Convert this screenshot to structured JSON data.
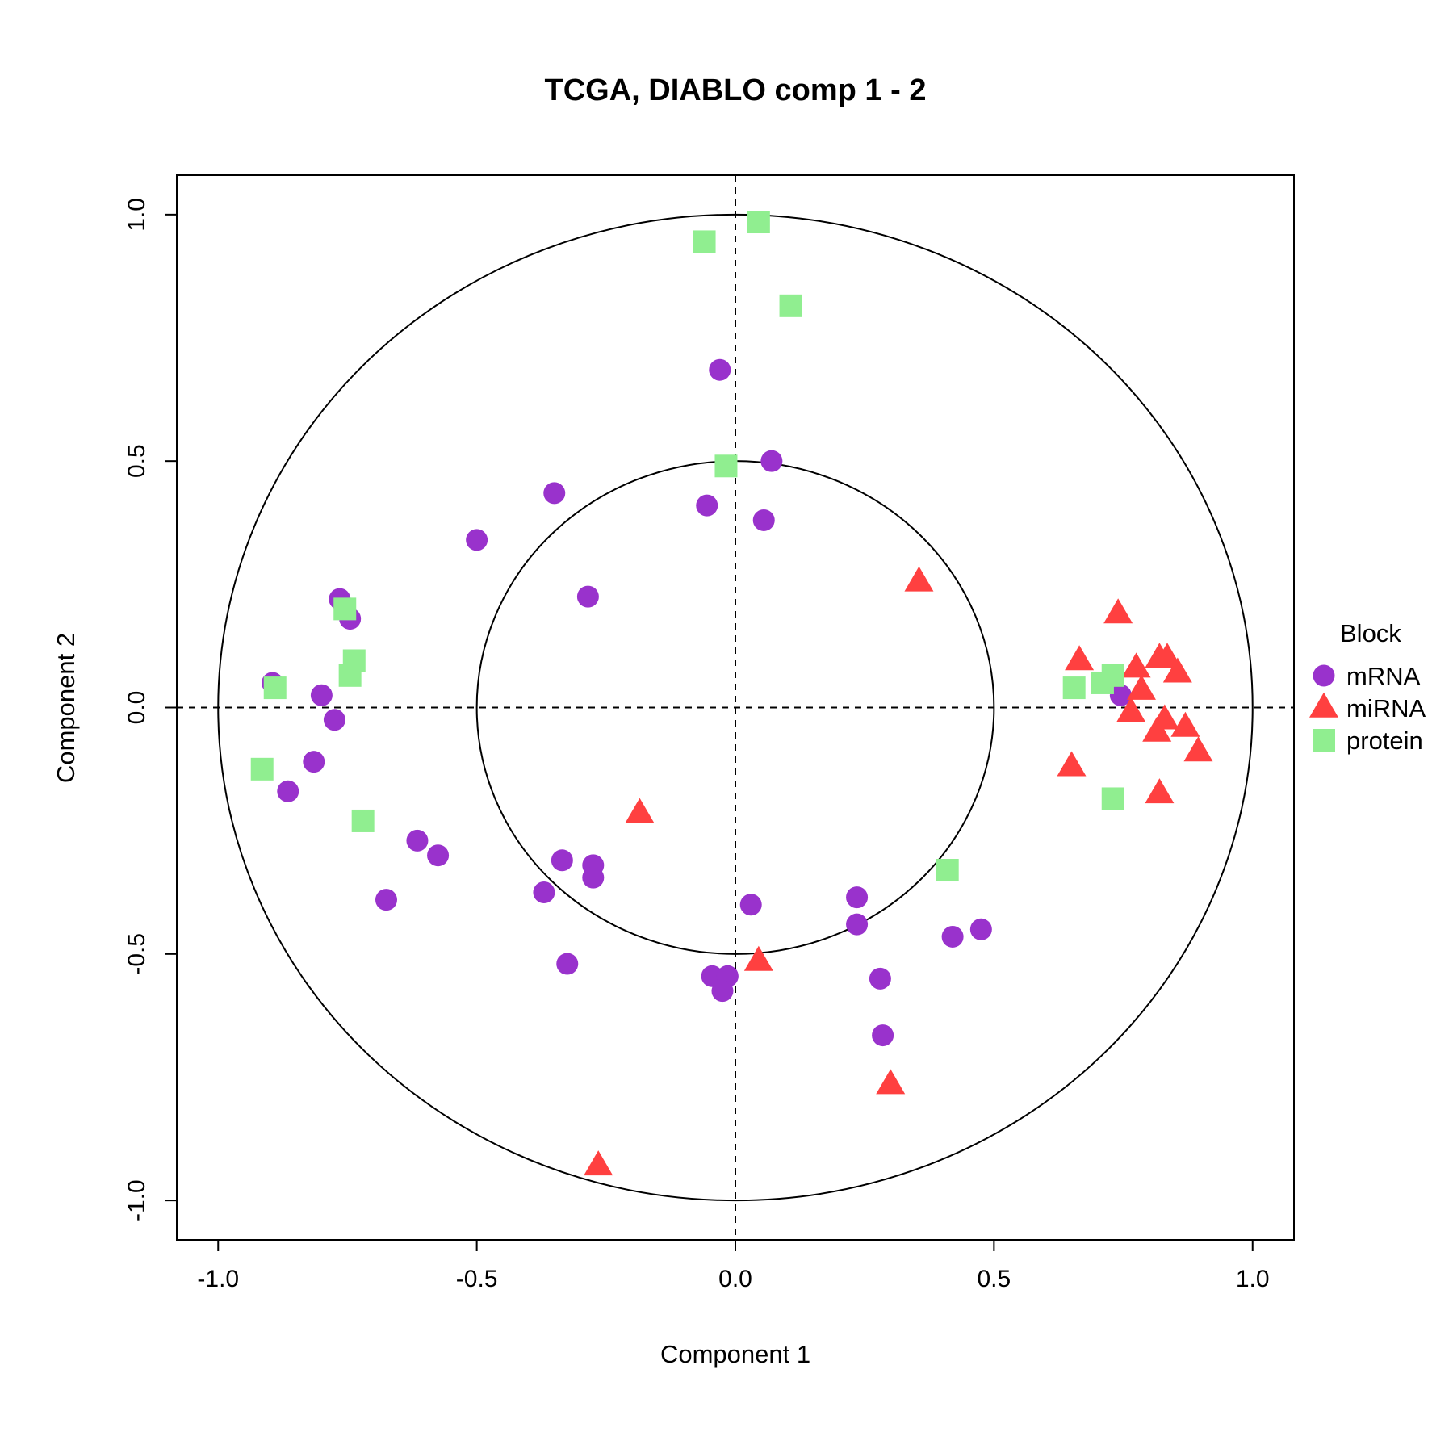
{
  "chart_data": {
    "type": "scatter",
    "title": "TCGA, DIABLO comp 1 - 2",
    "xlabel": "Component  1",
    "ylabel": "Component  2",
    "xlim": [
      -1.08,
      1.08
    ],
    "ylim": [
      -1.08,
      1.08
    ],
    "x_ticks": [
      "-1.0",
      "-0.5",
      "0.0",
      "0.5",
      "1.0"
    ],
    "y_ticks": [
      "-1.0",
      "-0.5",
      "0.0",
      "0.5",
      "1.0"
    ],
    "circles": [
      0.5,
      1.0
    ],
    "reference_lines": "dashed lines at x = 0 and y = 0",
    "legend": {
      "title": "Block",
      "placement": "right"
    },
    "series": [
      {
        "name": "mRNA",
        "shape": "circle",
        "color": "#9932CC",
        "points": [
          [
            -0.03,
            0.685
          ],
          [
            0.07,
            0.5
          ],
          [
            0.055,
            0.38
          ],
          [
            -0.055,
            0.41
          ],
          [
            -0.35,
            0.435
          ],
          [
            -0.5,
            0.34
          ],
          [
            -0.285,
            0.225
          ],
          [
            -0.765,
            0.22
          ],
          [
            -0.745,
            0.18
          ],
          [
            -0.895,
            0.05
          ],
          [
            -0.8,
            0.025
          ],
          [
            -0.775,
            -0.025
          ],
          [
            -0.815,
            -0.11
          ],
          [
            -0.865,
            -0.17
          ],
          [
            -0.615,
            -0.27
          ],
          [
            -0.575,
            -0.3
          ],
          [
            -0.675,
            -0.39
          ],
          [
            -0.335,
            -0.31
          ],
          [
            -0.275,
            -0.32
          ],
          [
            -0.275,
            -0.345
          ],
          [
            -0.37,
            -0.375
          ],
          [
            -0.325,
            -0.52
          ],
          [
            0.03,
            -0.4
          ],
          [
            -0.045,
            -0.545
          ],
          [
            -0.015,
            -0.545
          ],
          [
            -0.025,
            -0.575
          ],
          [
            0.235,
            -0.385
          ],
          [
            0.235,
            -0.44
          ],
          [
            0.28,
            -0.55
          ],
          [
            0.285,
            -0.665
          ],
          [
            0.42,
            -0.465
          ],
          [
            0.475,
            -0.45
          ],
          [
            0.745,
            0.025
          ]
        ]
      },
      {
        "name": "miRNA",
        "shape": "triangle",
        "color": "#FF4040",
        "points": [
          [
            0.355,
            0.255
          ],
          [
            0.74,
            0.19
          ],
          [
            0.665,
            0.095
          ],
          [
            0.775,
            0.08
          ],
          [
            0.82,
            0.1
          ],
          [
            0.835,
            0.1
          ],
          [
            0.855,
            0.07
          ],
          [
            0.785,
            0.035
          ],
          [
            0.765,
            -0.01
          ],
          [
            0.83,
            -0.025
          ],
          [
            0.815,
            -0.05
          ],
          [
            0.87,
            -0.04
          ],
          [
            0.895,
            -0.09
          ],
          [
            0.65,
            -0.12
          ],
          [
            0.82,
            -0.175
          ],
          [
            -0.185,
            -0.215
          ],
          [
            0.045,
            -0.515
          ],
          [
            0.3,
            -0.765
          ],
          [
            -0.265,
            -0.93
          ]
        ]
      },
      {
        "name": "protein",
        "shape": "square",
        "color": "#90EE90",
        "points": [
          [
            0.045,
            0.985
          ],
          [
            -0.06,
            0.945
          ],
          [
            0.107,
            0.815
          ],
          [
            -0.018,
            0.49
          ],
          [
            -0.755,
            0.2
          ],
          [
            -0.737,
            0.095
          ],
          [
            -0.745,
            0.065
          ],
          [
            -0.89,
            0.04
          ],
          [
            -0.915,
            -0.125
          ],
          [
            -0.72,
            -0.23
          ],
          [
            0.655,
            0.04
          ],
          [
            0.71,
            0.05
          ],
          [
            0.73,
            0.065
          ],
          [
            0.73,
            -0.185
          ],
          [
            0.41,
            -0.33
          ]
        ]
      }
    ]
  }
}
